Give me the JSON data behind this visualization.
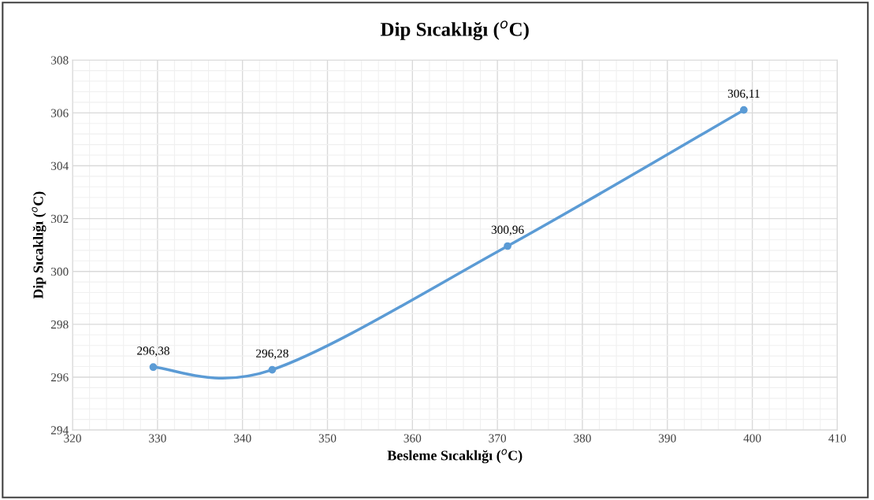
{
  "chart_data": {
    "type": "line",
    "title": "Dip Sıcaklığı ($^{o}$C)",
    "xlabel": "Besleme Sıcaklığı ($^{o}$C)",
    "ylabel": "Dip Sıcaklığı ($^{o}$C)",
    "x": [
      329.5,
      343.5,
      371.2,
      399
    ],
    "series": [
      {
        "color": "#5b9bd5",
        "values": [
          296.38,
          296.28,
          300.96,
          306.11
        ],
        "value_labels": [
          "296,38",
          "296,28",
          "300,96",
          "306,11"
        ]
      }
    ],
    "xlim": [
      320,
      410
    ],
    "xticks": [
      320,
      330,
      340,
      350,
      360,
      370,
      380,
      390,
      400,
      410
    ],
    "ylim": [
      294,
      308
    ],
    "yticks": [
      294,
      296,
      298,
      300,
      302,
      304,
      306,
      308
    ],
    "grid": true,
    "marker": "circle",
    "line_style": "solid",
    "legend": false
  }
}
